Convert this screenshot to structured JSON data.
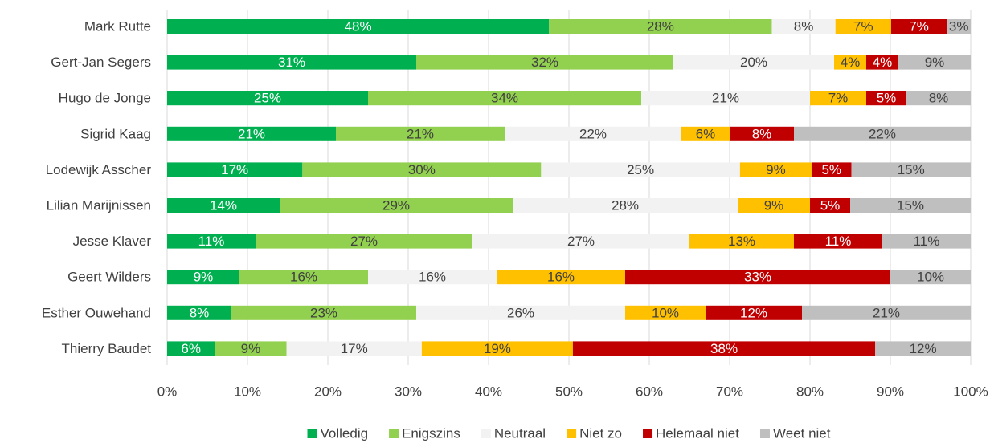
{
  "chart_data": {
    "type": "bar",
    "orientation": "horizontal",
    "stack": "percent",
    "categories": [
      "Mark Rutte",
      "Gert-Jan Segers",
      "Hugo de Jonge",
      "Sigrid Kaag",
      "Lodewijk Asscher",
      "Lilian Marijnissen",
      "Jesse Klaver",
      "Geert Wilders",
      "Esther Ouwehand",
      "Thierry Baudet"
    ],
    "series": [
      {
        "name": "Volledig",
        "color": "#00b050",
        "label_color": "#ffffff",
        "values": [
          48,
          31,
          25,
          21,
          17,
          14,
          11,
          9,
          8,
          6
        ],
        "value_labels": [
          "48%",
          "31%",
          "25%",
          "21%",
          "17%",
          "14%",
          "11%",
          "9%",
          "8%",
          "6%"
        ]
      },
      {
        "name": "Enigszins",
        "color": "#92d050",
        "label_color": "#404040",
        "values": [
          28,
          32,
          34,
          21,
          30,
          29,
          27,
          16,
          23,
          9
        ],
        "value_labels": [
          "28%",
          "32%",
          "34%",
          "21%",
          "30%",
          "29%",
          "27%",
          "16%",
          "23%",
          "9%"
        ]
      },
      {
        "name": "Neutraal",
        "color": "#f2f2f2",
        "label_color": "#404040",
        "values": [
          8,
          20,
          21,
          22,
          25,
          28,
          27,
          16,
          26,
          17
        ],
        "value_labels": [
          "8%",
          "20%",
          "21%",
          "22%",
          "25%",
          "28%",
          "27%",
          "16%",
          "26%",
          "17%"
        ]
      },
      {
        "name": "Niet zo",
        "color": "#ffc000",
        "label_color": "#404040",
        "values": [
          7,
          4,
          7,
          6,
          9,
          9,
          13,
          16,
          10,
          19
        ],
        "value_labels": [
          "7%",
          "4%",
          "7%",
          "6%",
          "9%",
          "9%",
          "13%",
          "16%",
          "10%",
          "19%"
        ]
      },
      {
        "name": "Helemaal niet",
        "color": "#c00000",
        "label_color": "#ffffff",
        "values": [
          7,
          4,
          5,
          8,
          5,
          5,
          11,
          33,
          12,
          38
        ],
        "value_labels": [
          "7%",
          "4%",
          "5%",
          "8%",
          "5%",
          "5%",
          "11%",
          "33%",
          "12%",
          "38%"
        ]
      },
      {
        "name": "Weet niet",
        "color": "#bfbfbf",
        "label_color": "#404040",
        "values": [
          3,
          9,
          8,
          22,
          15,
          15,
          11,
          10,
          21,
          12
        ],
        "value_labels": [
          "3%",
          "9%",
          "8%",
          "22%",
          "15%",
          "15%",
          "11%",
          "10%",
          "21%",
          "12%"
        ]
      }
    ],
    "xlim": [
      0,
      100
    ],
    "xticks": [
      {
        "value": 0,
        "label": "0%"
      },
      {
        "value": 10,
        "label": "10%"
      },
      {
        "value": 20,
        "label": "20%"
      },
      {
        "value": 30,
        "label": "30%"
      },
      {
        "value": 40,
        "label": "40%"
      },
      {
        "value": 50,
        "label": "50%"
      },
      {
        "value": 60,
        "label": "60%"
      },
      {
        "value": 70,
        "label": "70%"
      },
      {
        "value": 80,
        "label": "80%"
      },
      {
        "value": 90,
        "label": "90%"
      },
      {
        "value": 100,
        "label": "100%"
      }
    ],
    "grid": true,
    "legend": "bottom"
  }
}
